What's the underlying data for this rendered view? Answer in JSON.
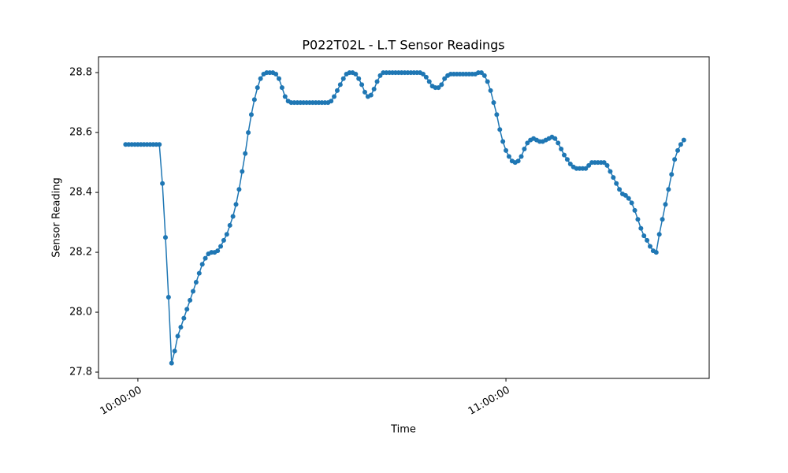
{
  "chart_data": {
    "type": "line",
    "title": "P022T02L - L.T Sensor Readings",
    "xlabel": "Time",
    "ylabel": "Sensor Reading",
    "color": "#1f77b4",
    "x": [
      "09:58:00",
      "09:58:30",
      "09:59:00",
      "09:59:30",
      "10:00:00",
      "10:00:30",
      "10:01:00",
      "10:01:30",
      "10:02:00",
      "10:02:30",
      "10:03:00",
      "10:03:30",
      "10:04:00",
      "10:04:30",
      "10:05:00",
      "10:05:30",
      "10:06:00",
      "10:06:30",
      "10:07:00",
      "10:07:30",
      "10:08:00",
      "10:08:30",
      "10:09:00",
      "10:09:30",
      "10:10:00",
      "10:10:30",
      "10:11:00",
      "10:11:30",
      "10:12:00",
      "10:12:30",
      "10:13:00",
      "10:13:30",
      "10:14:00",
      "10:14:30",
      "10:15:00",
      "10:15:30",
      "10:16:00",
      "10:16:30",
      "10:17:00",
      "10:17:30",
      "10:18:00",
      "10:18:30",
      "10:19:00",
      "10:19:30",
      "10:20:00",
      "10:20:30",
      "10:21:00",
      "10:21:30",
      "10:22:00",
      "10:22:30",
      "10:23:00",
      "10:23:30",
      "10:24:00",
      "10:24:30",
      "10:25:00",
      "10:25:30",
      "10:26:00",
      "10:26:30",
      "10:27:00",
      "10:27:30",
      "10:28:00",
      "10:28:30",
      "10:29:00",
      "10:29:30",
      "10:30:00",
      "10:30:30",
      "10:31:00",
      "10:31:30",
      "10:32:00",
      "10:32:30",
      "10:33:00",
      "10:33:30",
      "10:34:00",
      "10:34:30",
      "10:35:00",
      "10:35:30",
      "10:36:00",
      "10:36:30",
      "10:37:00",
      "10:37:30",
      "10:38:00",
      "10:38:30",
      "10:39:00",
      "10:39:30",
      "10:40:00",
      "10:40:30",
      "10:41:00",
      "10:41:30",
      "10:42:00",
      "10:42:30",
      "10:43:00",
      "10:43:30",
      "10:44:00",
      "10:44:30",
      "10:45:00",
      "10:45:30",
      "10:46:00",
      "10:46:30",
      "10:47:00",
      "10:47:30",
      "10:48:00",
      "10:48:30",
      "10:49:00",
      "10:49:30",
      "10:50:00",
      "10:50:30",
      "10:51:00",
      "10:51:30",
      "10:52:00",
      "10:52:30",
      "10:53:00",
      "10:53:30",
      "10:54:00",
      "10:54:30",
      "10:55:00",
      "10:55:30",
      "10:56:00",
      "10:56:30",
      "10:57:00",
      "10:57:30",
      "10:58:00",
      "10:58:30",
      "10:59:00",
      "10:59:30",
      "11:00:00",
      "11:00:30",
      "11:01:00",
      "11:01:30",
      "11:02:00",
      "11:02:30",
      "11:03:00",
      "11:03:30",
      "11:04:00",
      "11:04:30",
      "11:05:00",
      "11:05:30",
      "11:06:00",
      "11:06:30",
      "11:07:00",
      "11:07:30",
      "11:08:00",
      "11:08:30",
      "11:09:00",
      "11:09:30",
      "11:10:00",
      "11:10:30",
      "11:11:00",
      "11:11:30",
      "11:12:00",
      "11:12:30",
      "11:13:00",
      "11:13:30",
      "11:14:00",
      "11:14:30",
      "11:15:00",
      "11:15:30",
      "11:16:00",
      "11:16:30",
      "11:17:00",
      "11:17:30",
      "11:18:00",
      "11:18:30",
      "11:19:00",
      "11:19:30",
      "11:20:00",
      "11:20:30",
      "11:21:00",
      "11:21:30",
      "11:22:00",
      "11:22:30",
      "11:23:00",
      "11:23:30",
      "11:24:00",
      "11:24:30",
      "11:25:00",
      "11:25:30",
      "11:26:00",
      "11:26:30",
      "11:27:00",
      "11:27:30",
      "11:28:00",
      "11:28:30",
      "11:29:00"
    ],
    "values": [
      28.56,
      28.56,
      28.56,
      28.56,
      28.56,
      28.56,
      28.56,
      28.56,
      28.56,
      28.56,
      28.56,
      28.56,
      28.43,
      28.25,
      28.05,
      27.83,
      27.87,
      27.92,
      27.95,
      27.98,
      28.01,
      28.04,
      28.07,
      28.1,
      28.13,
      28.16,
      28.18,
      28.195,
      28.2,
      28.2,
      28.205,
      28.22,
      28.24,
      28.26,
      28.29,
      28.32,
      28.36,
      28.41,
      28.47,
      28.53,
      28.6,
      28.66,
      28.71,
      28.75,
      28.78,
      28.795,
      28.8,
      28.8,
      28.8,
      28.795,
      28.78,
      28.75,
      28.72,
      28.705,
      28.7,
      28.7,
      28.7,
      28.7,
      28.7,
      28.7,
      28.7,
      28.7,
      28.7,
      28.7,
      28.7,
      28.7,
      28.7,
      28.705,
      28.72,
      28.74,
      28.76,
      28.78,
      28.795,
      28.8,
      28.8,
      28.795,
      28.78,
      28.76,
      28.735,
      28.72,
      28.725,
      28.745,
      28.77,
      28.79,
      28.8,
      28.8,
      28.8,
      28.8,
      28.8,
      28.8,
      28.8,
      28.8,
      28.8,
      28.8,
      28.8,
      28.8,
      28.8,
      28.795,
      28.785,
      28.77,
      28.755,
      28.75,
      28.75,
      28.76,
      28.78,
      28.79,
      28.795,
      28.795,
      28.795,
      28.795,
      28.795,
      28.795,
      28.795,
      28.795,
      28.795,
      28.8,
      28.8,
      28.79,
      28.77,
      28.74,
      28.7,
      28.66,
      28.61,
      28.57,
      28.54,
      28.52,
      28.505,
      28.5,
      28.505,
      28.52,
      28.545,
      28.565,
      28.575,
      28.58,
      28.575,
      28.57,
      28.57,
      28.575,
      28.58,
      28.585,
      28.58,
      28.565,
      28.545,
      28.525,
      28.51,
      28.495,
      28.485,
      28.48,
      28.48,
      28.48,
      28.48,
      28.49,
      28.5,
      28.5,
      28.5,
      28.5,
      28.5,
      28.49,
      28.47,
      28.45,
      28.43,
      28.41,
      28.395,
      28.39,
      28.38,
      28.365,
      28.34,
      28.31,
      28.28,
      28.255,
      28.24,
      28.22,
      28.205,
      28.2,
      28.26,
      28.31,
      28.36,
      28.41,
      28.46,
      28.51,
      28.54,
      28.56,
      28.575
    ],
    "xlim": [
      "09:53:35",
      "11:33:08"
    ],
    "xticks": [
      "10:00:00",
      "11:00:00"
    ],
    "ylim": [
      27.779,
      28.853
    ],
    "yticks": [
      27.8,
      {
        "value": 28,
        "label": "28.0"
      },
      28.2,
      28.4,
      28.6,
      28.8
    ]
  }
}
